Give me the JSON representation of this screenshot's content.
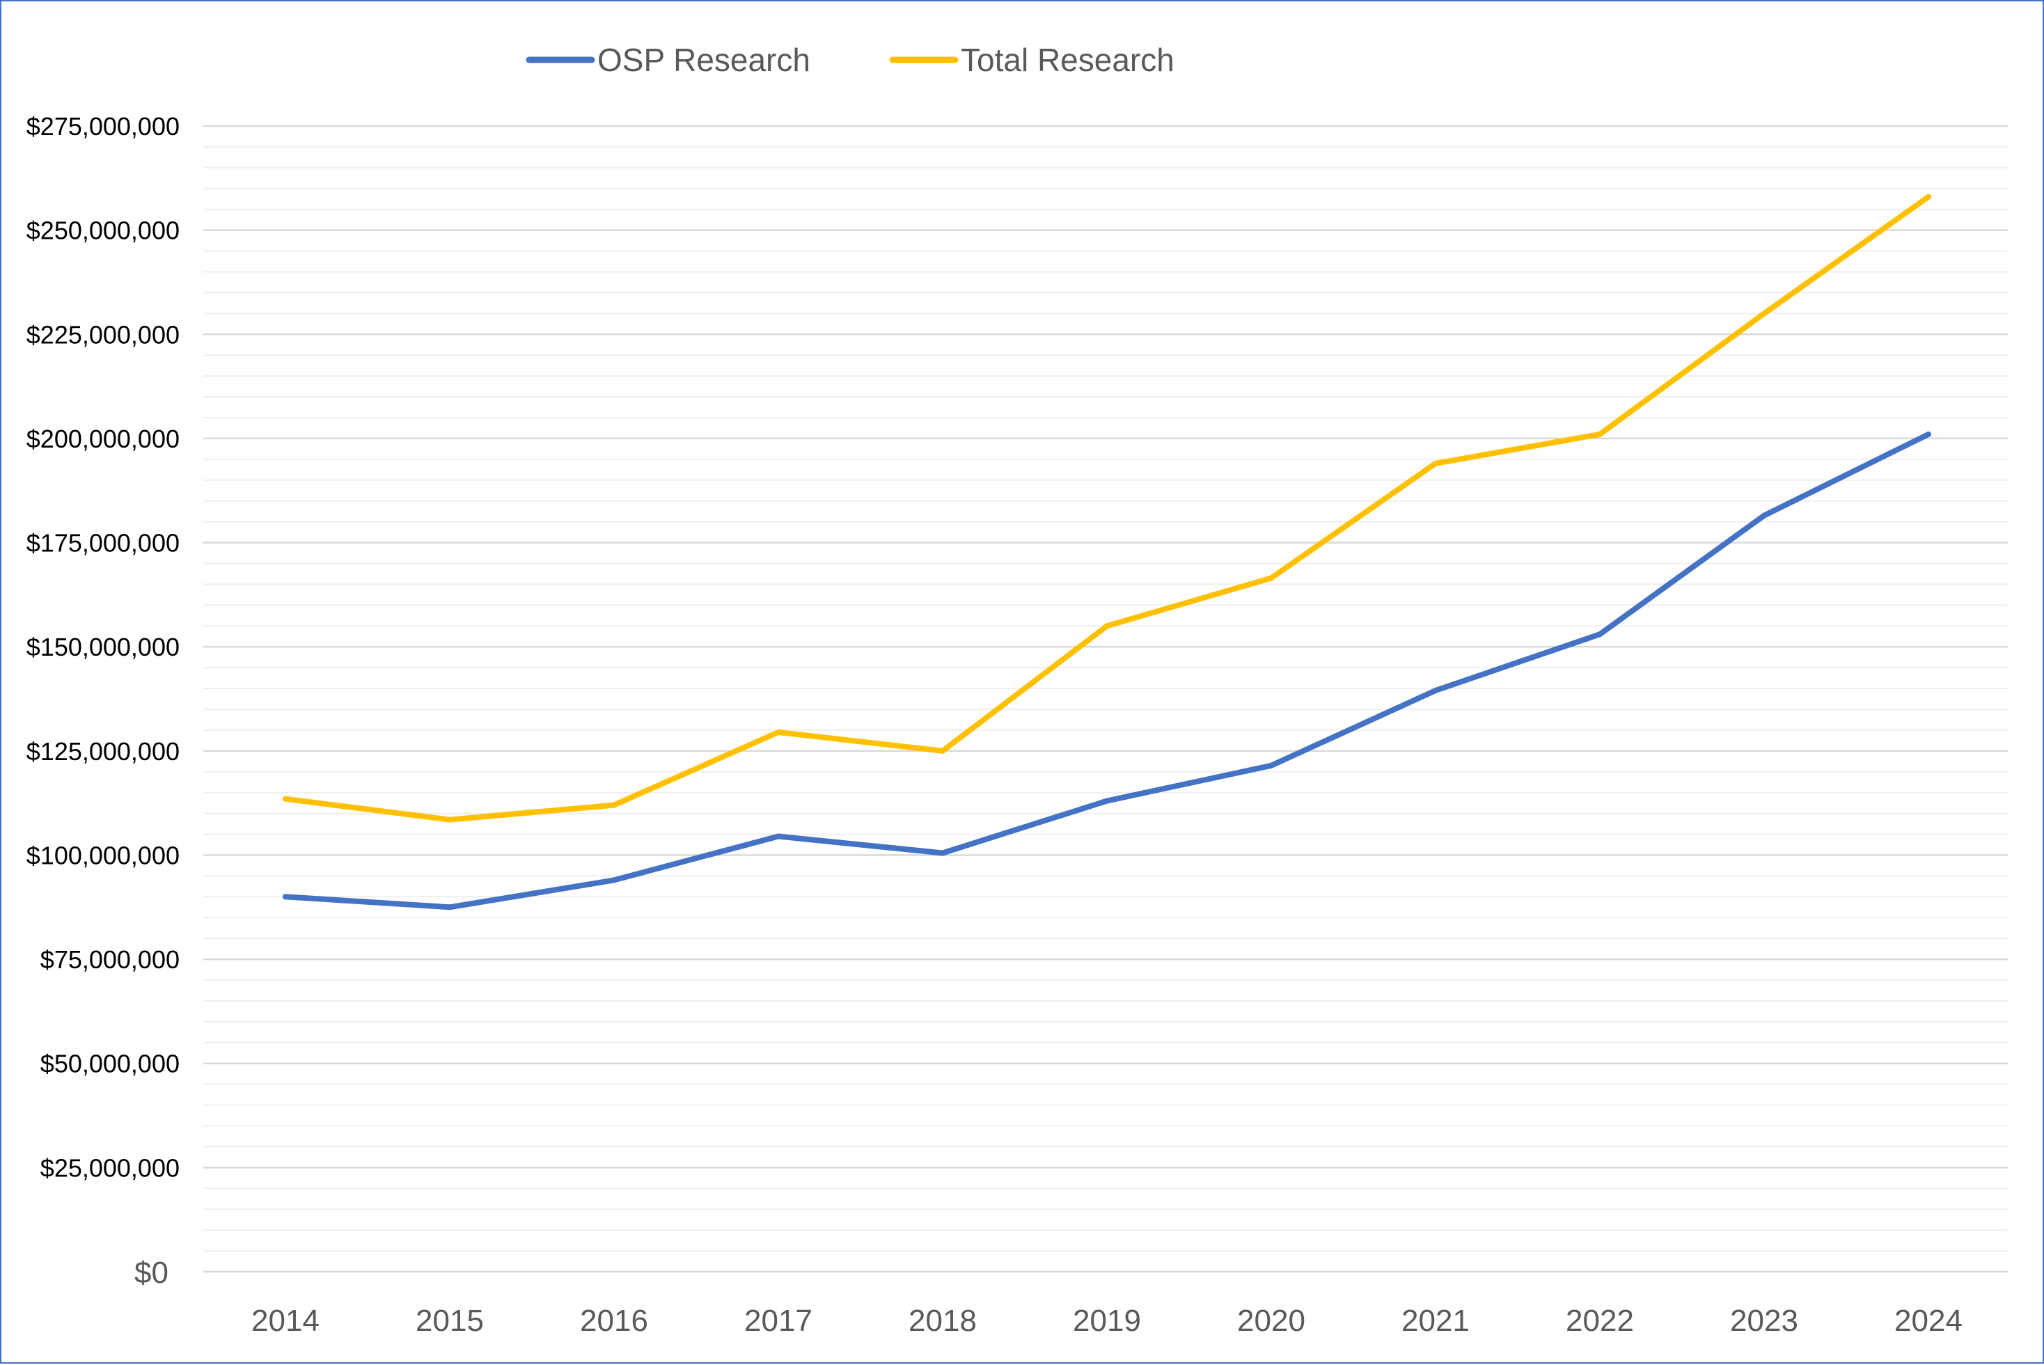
{
  "chart_data": {
    "type": "line",
    "categories": [
      "2014",
      "2015",
      "2016",
      "2017",
      "2018",
      "2019",
      "2020",
      "2021",
      "2022",
      "2023",
      "2024"
    ],
    "series": [
      {
        "name": "OSP Research",
        "color": "#4472C4",
        "values": [
          90000000,
          87500000,
          94000000,
          104500000,
          100500000,
          113000000,
          121500000,
          139500000,
          153000000,
          181500000,
          201000000
        ]
      },
      {
        "name": "Total Research",
        "color": "#FFC000",
        "values": [
          113500000,
          108500000,
          112000000,
          129500000,
          125000000,
          155000000,
          166500000,
          194000000,
          201000000,
          230000000,
          258000000
        ]
      }
    ],
    "y_ticks": [
      {
        "value": 0,
        "label": "$0"
      },
      {
        "value": 25000000,
        "label": "$25,000,000"
      },
      {
        "value": 50000000,
        "label": "$50,000,000"
      },
      {
        "value": 75000000,
        "label": "$75,000,000"
      },
      {
        "value": 100000000,
        "label": "$100,000,000"
      },
      {
        "value": 125000000,
        "label": "$125,000,000"
      },
      {
        "value": 150000000,
        "label": "$150,000,000"
      },
      {
        "value": 175000000,
        "label": "$175,000,000"
      },
      {
        "value": 200000000,
        "label": "$200,000,000"
      },
      {
        "value": 225000000,
        "label": "$225,000,000"
      },
      {
        "value": 250000000,
        "label": "$250,000,000"
      },
      {
        "value": 275000000,
        "label": "$275,000,000"
      }
    ],
    "ylim": [
      0,
      275000000
    ],
    "minor_grid_step": 5000000,
    "grid": true,
    "legend_position": "top-center",
    "major_grid_color": "#D9D9D9",
    "minor_grid_color": "#EFEFEF"
  }
}
